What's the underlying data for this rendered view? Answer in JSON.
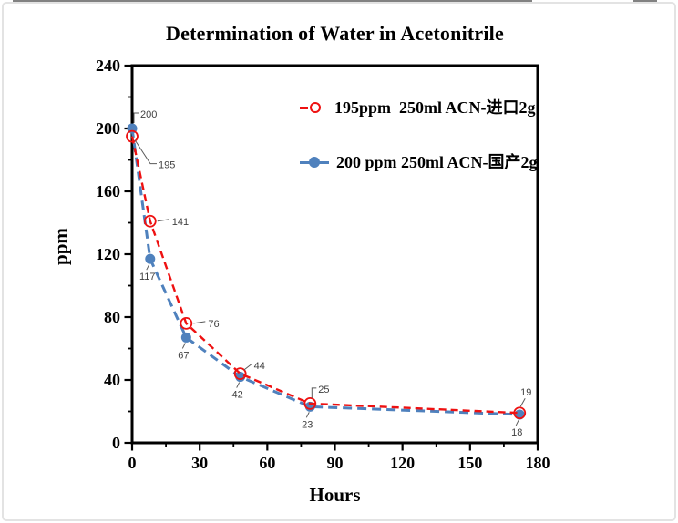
{
  "window": {
    "background": "#ffffff",
    "border_color": "#e3e3e3"
  },
  "colors": {
    "red_series": "#ee1111",
    "blue_series": "#4f81bd",
    "axis": "#000000",
    "annotation_text": "#3f3f3f",
    "leader_line": "#595959"
  },
  "chart_data": {
    "type": "line",
    "title": "Determination of Water in Acetonitrile",
    "xlabel": "Hours",
    "ylabel": "ppm",
    "xlim": [
      0,
      180
    ],
    "ylim": [
      0,
      240
    ],
    "x_major_ticks": [
      0,
      30,
      60,
      90,
      120,
      150,
      180
    ],
    "x_minor_ticks": [
      15,
      45,
      75,
      105,
      135,
      165
    ],
    "y_major_ticks": [
      0,
      40,
      80,
      120,
      160,
      200,
      240
    ],
    "y_minor_ticks": [
      20,
      60,
      100,
      140,
      180,
      220
    ],
    "grid": false,
    "legend_position": "inside-upper-center",
    "series": [
      {
        "name": "195ppm  250ml ACN-进口2g",
        "color": "#ee1111",
        "line_style": "dashed",
        "marker": "open-circle",
        "points": [
          {
            "x": 0,
            "y": 195,
            "label": "195",
            "label_pos": "tail-down-right"
          },
          {
            "x": 8,
            "y": 141,
            "label": "141",
            "label_pos": "tail-right"
          },
          {
            "x": 24,
            "y": 76,
            "label": "76",
            "label_pos": "tail-right"
          },
          {
            "x": 48,
            "y": 44,
            "label": "44",
            "label_pos": "diag-up-right"
          },
          {
            "x": 79,
            "y": 25,
            "label": "25",
            "label_pos": "elbow-up"
          },
          {
            "x": 172,
            "y": 19,
            "label": "19",
            "label_pos": "above"
          }
        ]
      },
      {
        "name": "200 ppm 250ml ACN-国产2g",
        "color": "#4f81bd",
        "line_style": "dashed",
        "marker": "filled-circle",
        "points": [
          {
            "x": 0,
            "y": 200,
            "label": "200",
            "label_pos": "elbow-up"
          },
          {
            "x": 8,
            "y": 117,
            "label": "117",
            "label_pos": "below-left"
          },
          {
            "x": 24,
            "y": 67,
            "label": "67",
            "label_pos": "below-left"
          },
          {
            "x": 48,
            "y": 42,
            "label": "42",
            "label_pos": "below-left"
          },
          {
            "x": 79,
            "y": 23,
            "label": "23",
            "label_pos": "below-left"
          },
          {
            "x": 172,
            "y": 18,
            "label": "18",
            "label_pos": "below-left"
          }
        ]
      }
    ]
  }
}
